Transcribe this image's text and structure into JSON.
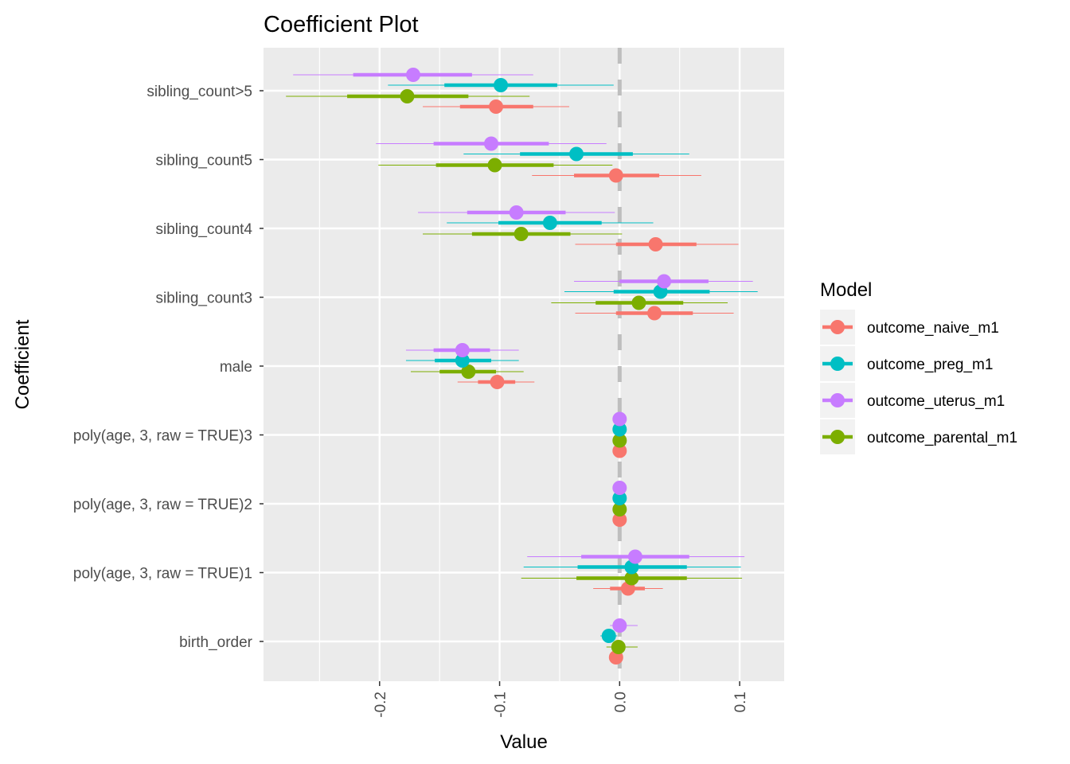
{
  "chart_data": {
    "type": "coefficient-plot",
    "title": "Coefficient Plot",
    "xlabel": "Value",
    "ylabel": "Coefficient",
    "xlim": [
      -0.2967,
      0.1371
    ],
    "x_ticks": [
      {
        "value": -0.2,
        "label": "-0.2"
      },
      {
        "value": -0.1,
        "label": "-0.1"
      },
      {
        "value": 0.0,
        "label": "0.0"
      },
      {
        "value": 0.1,
        "label": "0.1"
      }
    ],
    "reference_line": 0,
    "categories": [
      "sibling_count>5",
      "sibling_count5",
      "sibling_count4",
      "sibling_count3",
      "male",
      "poly(age, 3, raw = TRUE)3",
      "poly(age, 3, raw = TRUE)2",
      "poly(age, 3, raw = TRUE)1",
      "birth_order"
    ],
    "legend": {
      "title": "Model",
      "position": "right"
    },
    "series": [
      {
        "name": "outcome_naive_m1",
        "color": "#F8766D",
        "estimates": [
          -0.103,
          -0.003,
          0.03,
          0.029,
          -0.102,
          0.0,
          0.0,
          0.007,
          -0.003
        ],
        "inner_low": [
          -0.133,
          -0.038,
          -0.003,
          -0.003,
          -0.118,
          0.0,
          0.0,
          -0.008,
          -0.004
        ],
        "inner_high": [
          -0.072,
          0.033,
          0.064,
          0.061,
          -0.087,
          0.0,
          0.0,
          0.021,
          -0.002
        ],
        "outer_low": [
          -0.164,
          -0.073,
          -0.037,
          -0.037,
          -0.135,
          0.0,
          0.0,
          -0.022,
          -0.005
        ],
        "outer_high": [
          -0.042,
          0.068,
          0.099,
          0.095,
          -0.071,
          0.0,
          0.0,
          0.036,
          -0.001
        ]
      },
      {
        "name": "outcome_preg_m1",
        "color": "#00BFC4",
        "estimates": [
          -0.099,
          -0.036,
          -0.058,
          0.034,
          -0.131,
          0.0,
          0.0,
          0.01,
          -0.009
        ],
        "inner_low": [
          -0.146,
          -0.083,
          -0.101,
          -0.005,
          -0.154,
          0.0,
          0.0,
          -0.035,
          -0.012
        ],
        "inner_high": [
          -0.052,
          0.011,
          -0.015,
          0.075,
          -0.107,
          0.0,
          0.0,
          0.056,
          -0.006
        ],
        "outer_low": [
          -0.193,
          -0.13,
          -0.144,
          -0.046,
          -0.178,
          0.0,
          0.0,
          -0.08,
          -0.016
        ],
        "outer_high": [
          -0.005,
          0.058,
          0.028,
          0.115,
          -0.084,
          0.0,
          0.0,
          0.101,
          -0.002
        ]
      },
      {
        "name": "outcome_uterus_m1",
        "color": "#C77CFF",
        "estimates": [
          -0.172,
          -0.107,
          -0.086,
          0.037,
          -0.131,
          0.0,
          0.0,
          0.013,
          0.0
        ],
        "inner_low": [
          -0.222,
          -0.155,
          -0.127,
          0.0,
          -0.155,
          0.0,
          0.0,
          -0.032,
          -0.004
        ],
        "inner_high": [
          -0.123,
          -0.059,
          -0.045,
          0.074,
          -0.108,
          0.0,
          0.0,
          0.058,
          0.004
        ],
        "outer_low": [
          -0.272,
          -0.203,
          -0.168,
          -0.038,
          -0.178,
          0.0,
          0.0,
          -0.077,
          -0.008
        ],
        "outer_high": [
          -0.072,
          -0.011,
          -0.004,
          0.111,
          -0.084,
          0.0,
          0.0,
          0.104,
          0.015
        ]
      },
      {
        "name": "outcome_parental_m1",
        "color": "#7CAE00",
        "estimates": [
          -0.177,
          -0.104,
          -0.082,
          0.016,
          -0.126,
          0.0,
          0.0,
          0.01,
          -0.001
        ],
        "inner_low": [
          -0.227,
          -0.153,
          -0.123,
          -0.02,
          -0.15,
          0.0,
          0.0,
          -0.036,
          -0.006
        ],
        "inner_high": [
          -0.126,
          -0.055,
          -0.041,
          0.053,
          -0.103,
          0.0,
          0.0,
          0.056,
          0.004
        ],
        "outer_low": [
          -0.278,
          -0.201,
          -0.164,
          -0.057,
          -0.174,
          0.0,
          0.0,
          -0.082,
          -0.011
        ],
        "outer_high": [
          -0.075,
          -0.006,
          0.002,
          0.09,
          -0.08,
          0.0,
          0.0,
          0.102,
          0.015
        ]
      }
    ]
  }
}
